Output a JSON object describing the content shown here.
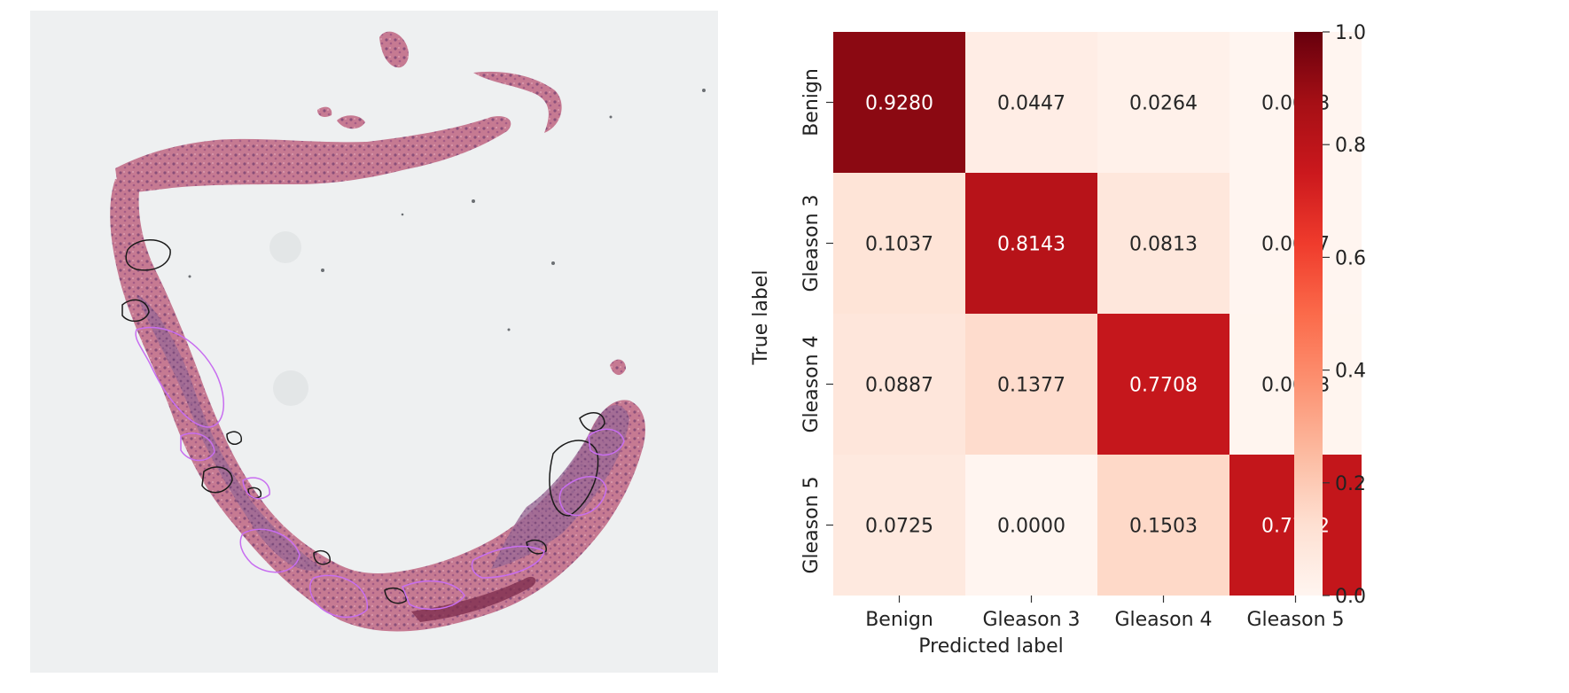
{
  "chart_data": {
    "type": "heatmap",
    "title": "",
    "xlabel": "Predicted label",
    "ylabel": "True label",
    "x_categories": [
      "Benign",
      "Gleason 3",
      "Gleason 4",
      "Gleason 5"
    ],
    "y_categories": [
      "Benign",
      "Gleason 3",
      "Gleason 4",
      "Gleason 5"
    ],
    "values": [
      [
        0.928,
        0.0447,
        0.0264,
        0.0008
      ],
      [
        0.1037,
        0.8143,
        0.0813,
        0.0007
      ],
      [
        0.0887,
        0.1377,
        0.7708,
        0.0028
      ],
      [
        0.0725,
        0.0,
        0.1503,
        0.7772
      ]
    ],
    "value_labels": [
      [
        "0.9280",
        "0.0447",
        "0.0264",
        "0.0008"
      ],
      [
        "0.1037",
        "0.8143",
        "0.0813",
        "0.0007"
      ],
      [
        "0.0887",
        "0.1377",
        "0.7708",
        "0.0028"
      ],
      [
        "0.0725",
        "0.0000",
        "0.1503",
        "0.7772"
      ]
    ],
    "colormap": "Reds",
    "vmin": 0.0,
    "vmax": 1.0,
    "colorbar_ticks": [
      0.0,
      0.2,
      0.4,
      0.6,
      0.8,
      1.0
    ],
    "colorbar_tick_labels": [
      "0.0",
      "0.2",
      "0.4",
      "0.6",
      "0.8",
      "1.0"
    ],
    "colorbar_position": "right",
    "grid": false
  },
  "tissue_image": {
    "background_color": "#eef0f1",
    "tissue_color": "#c9778f",
    "annotation_colors": [
      "#1a1a1a",
      "#c86ef0"
    ]
  }
}
